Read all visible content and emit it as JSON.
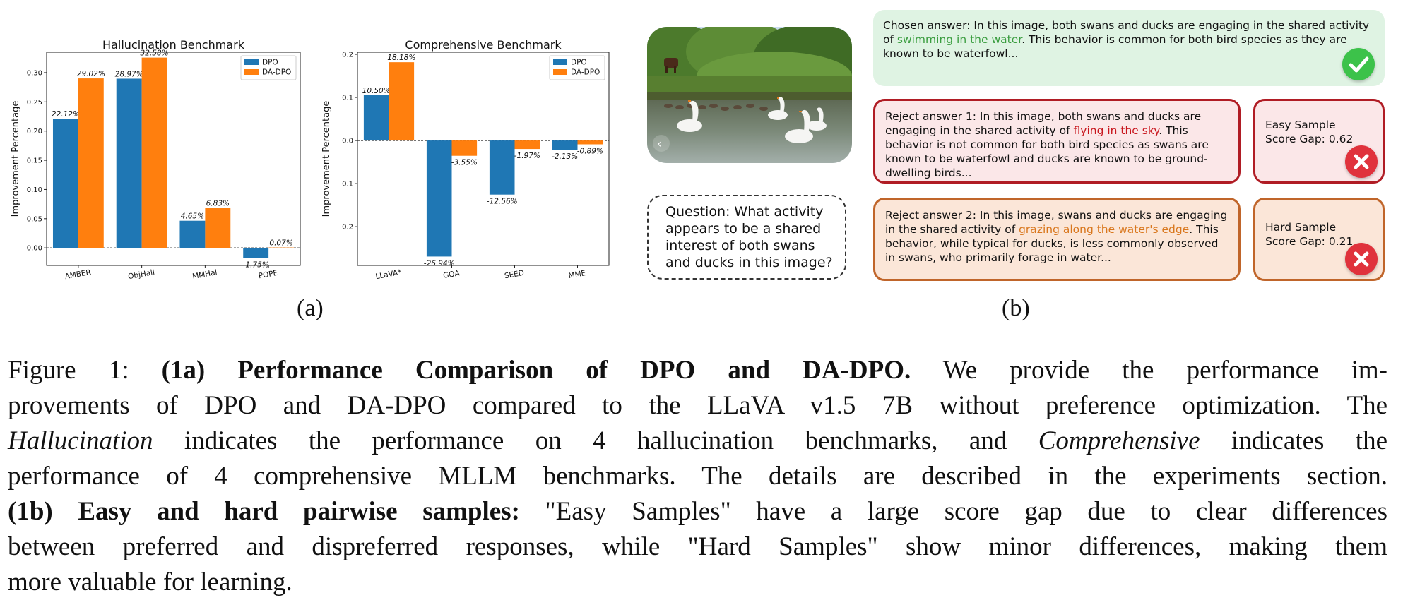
{
  "chart_data": [
    {
      "type": "bar",
      "title": "Hallucination Benchmark",
      "xlabel": "",
      "ylabel": "Improvement Percentage",
      "categories": [
        "AMBER",
        "ObjHall",
        "MMHal",
        "POPE"
      ],
      "series": [
        {
          "name": "DPO",
          "color": "#1f77b4",
          "values": [
            0.2212,
            0.2897,
            0.0465,
            -0.0175
          ],
          "labels": [
            "22.12%",
            "28.97%",
            "4.65%",
            "-1.75%"
          ]
        },
        {
          "name": "DA-DPO",
          "color": "#ff7f0e",
          "values": [
            0.2902,
            0.3258,
            0.0683,
            0.0007
          ],
          "labels": [
            "29.02%",
            "32.58%",
            "6.83%",
            "0.07%"
          ]
        }
      ],
      "ylim": [
        -0.03,
        0.335
      ],
      "yticks": [
        0.0,
        0.05,
        0.1,
        0.15,
        0.2,
        0.25,
        0.3
      ],
      "ytick_labels": [
        "0.00",
        "0.05",
        "0.10",
        "0.15",
        "0.20",
        "0.25",
        "0.30"
      ],
      "legend": "top-right",
      "grid": false
    },
    {
      "type": "bar",
      "title": "Comprehensive Benchmark",
      "xlabel": "",
      "ylabel": "Improvement Percentage",
      "categories": [
        "LLaVA*",
        "GQA",
        "SEED",
        "MME"
      ],
      "series": [
        {
          "name": "DPO",
          "color": "#1f77b4",
          "values": [
            0.105,
            -0.2694,
            -0.1256,
            -0.0213
          ],
          "labels": [
            "10.50%",
            "-26.94%",
            "-12.56%",
            "-2.13%"
          ]
        },
        {
          "name": "DA-DPO",
          "color": "#ff7f0e",
          "values": [
            0.1818,
            -0.0355,
            -0.0197,
            -0.0089
          ],
          "labels": [
            "18.18%",
            "-3.55%",
            "-1.97%",
            "-0.89%"
          ]
        }
      ],
      "ylim": [
        -0.29,
        0.205
      ],
      "yticks": [
        -0.2,
        -0.1,
        0.0,
        0.1,
        0.2
      ],
      "ytick_labels": [
        "-0.2",
        "-0.1",
        "0.0",
        "0.1",
        "0.2"
      ],
      "legend": "top-right",
      "grid": false
    }
  ],
  "panels": {
    "a_label": "(a)",
    "b_label": "(b)"
  },
  "question": "Question: What activity appears to be a shared interest of both swans and ducks in this image?",
  "chosen": {
    "prefix": "Chosen answer: In this image, both swans and ducks are engaging in the shared activity of ",
    "highlight": "swimming in the water",
    "suffix": ". This behavior is common for both bird species as they are known to be waterfowl...",
    "highlight_color": "#3a9d3f"
  },
  "reject1": {
    "prefix": "Reject answer 1: In this image, both swans and ducks are engaging in the shared activity of ",
    "highlight": "flying in the sky",
    "suffix": ". This behavior is not common for both bird species as swans are known to be waterfowl and ducks are known to be ground-dwelling birds...",
    "highlight_color": "#c8161d"
  },
  "reject2": {
    "prefix": "Reject answer 2: In this image, swans and ducks are engaging in the shared activity of ",
    "highlight": "grazing along the water's edge",
    "suffix": ". This behavior, while typical for ducks, is less commonly observed in swans, who primarily forage in water...",
    "highlight_color": "#d9771d"
  },
  "easy": {
    "title": "Easy Sample",
    "gap": "Score Gap: 0.62"
  },
  "hard": {
    "title": "Hard Sample",
    "gap": "Score Gap: 0.21"
  },
  "icons": {
    "chosen": "check-icon",
    "reject": "cross-icon",
    "photo_nav": "chevron-left-icon"
  },
  "caption": {
    "fig": "Figure 1: ",
    "a_bold": "(1a) Performance Comparison of DPO and DA-DPO.",
    "a_text1": " We provide the performance im-",
    "a_text2": "provements of DPO and DA-DPO compared to the LLaVA v1.5 7B without preference optimization. The",
    "hall_italic": "Hallucination",
    "a_text3": " indicates the performance on 4 hallucination benchmarks, and ",
    "comp_italic": "Comprehensive",
    "a_text4": " indicates the",
    "a_text5": "performance of 4 comprehensive MLLM benchmarks. The details are described in the experiments section.",
    "b_bold": "(1b) Easy and hard pairwise samples:",
    "b_text1": " \"Easy Samples\" have a large score gap due to clear differences",
    "b_text2": "between preferred and dispreferred responses, while \"Hard Samples\" show minor differences, making them",
    "b_text3": "more valuable for learning."
  }
}
